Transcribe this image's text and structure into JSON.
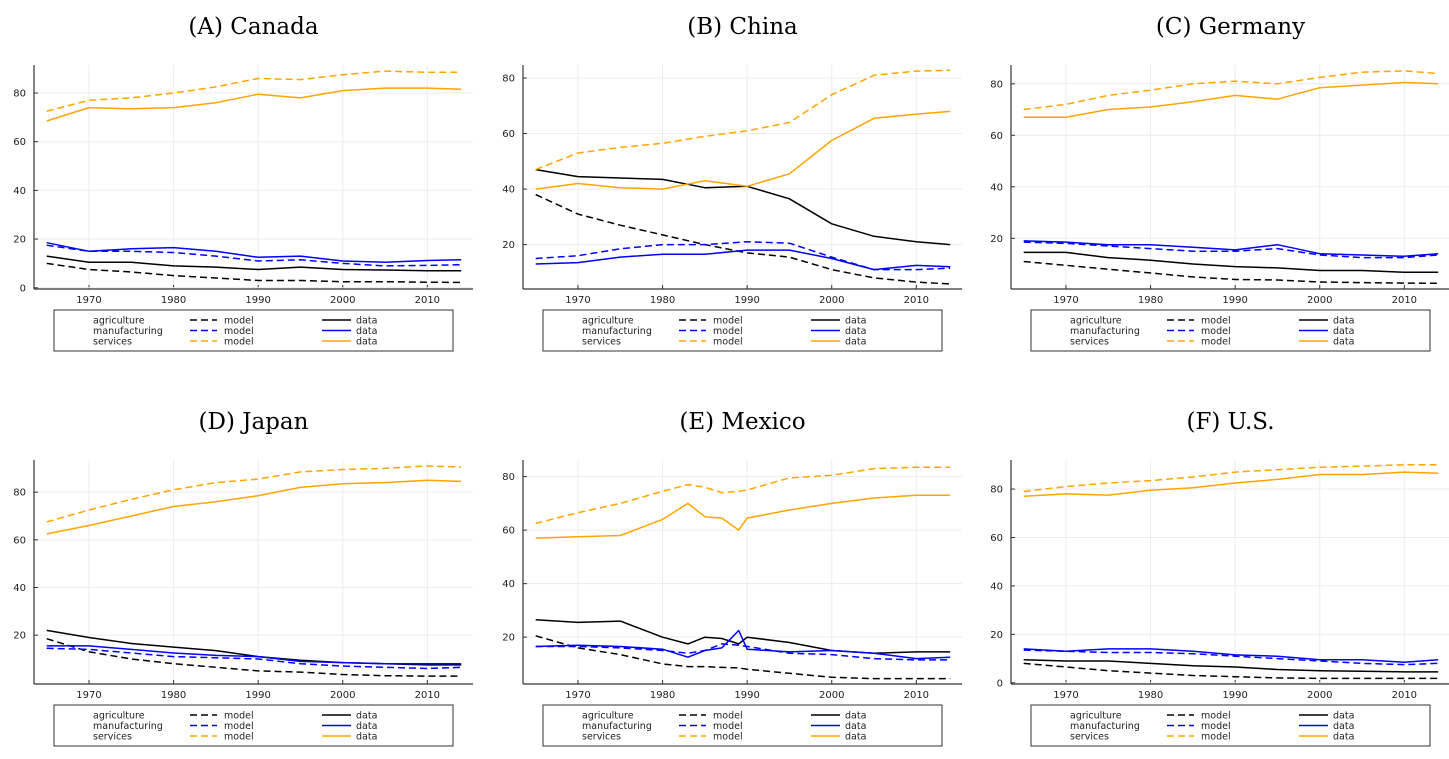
{
  "chart_data": [
    {
      "type": "line",
      "title": "(A) Canada",
      "xlim": [
        1963.5,
        2015.4
      ],
      "ylim": [
        -0.5,
        91.5
      ],
      "xticks": [
        1970,
        1980,
        1990,
        2000,
        2010
      ],
      "yticks": [
        0,
        20,
        40,
        60,
        80
      ],
      "grid": true,
      "legend_placement": "bottom",
      "x": [
        1965,
        1970,
        1975,
        1980,
        1985,
        1990,
        1995,
        2000,
        2005,
        2010,
        2014
      ],
      "series": [
        {
          "name": "agriculture model",
          "sector": "agriculture",
          "kind": "model",
          "color": "#000000",
          "values": [
            10,
            7.5,
            6.5,
            5,
            4,
            3,
            3,
            2.5,
            2.5,
            2.3,
            2.2
          ]
        },
        {
          "name": "agriculture data",
          "sector": "agriculture",
          "kind": "data",
          "color": "#000000",
          "values": [
            13,
            10.5,
            10.5,
            9,
            8.5,
            7.5,
            8.5,
            7.5,
            7.3,
            7,
            7
          ]
        },
        {
          "name": "manufacturing model",
          "sector": "manufacturing",
          "kind": "model",
          "color": "#0000ff",
          "values": [
            17.5,
            15,
            15,
            14.5,
            13,
            11,
            11.5,
            10,
            9,
            9.2,
            9.5
          ]
        },
        {
          "name": "manufacturing data",
          "sector": "manufacturing",
          "kind": "data",
          "color": "#0000ff",
          "values": [
            18.5,
            15,
            16,
            16.5,
            15,
            12.5,
            13,
            11,
            10.5,
            11.2,
            11.5
          ]
        },
        {
          "name": "services model",
          "sector": "services",
          "kind": "model",
          "color": "#ffa500",
          "values": [
            72.5,
            77,
            78,
            80,
            82.5,
            86,
            85.5,
            87.5,
            89,
            88.5,
            88.5
          ]
        },
        {
          "name": "services data",
          "sector": "services",
          "kind": "data",
          "color": "#ffa500",
          "values": [
            68.5,
            74,
            73.5,
            74,
            76,
            79.5,
            78,
            81,
            82,
            82,
            81.5
          ]
        }
      ]
    },
    {
      "type": "line",
      "title": "(B) China",
      "xlim": [
        1963.5,
        2015.4
      ],
      "ylim": [
        4,
        84.7
      ],
      "xticks": [
        1970,
        1980,
        1990,
        2000,
        2010
      ],
      "yticks": [
        20,
        40,
        60,
        80
      ],
      "grid": true,
      "legend_placement": "bottom",
      "x": [
        1965,
        1970,
        1975,
        1980,
        1985,
        1990,
        1995,
        2000,
        2005,
        2010,
        2014
      ],
      "series": [
        {
          "name": "agriculture model",
          "sector": "agriculture",
          "kind": "model",
          "color": "#000000",
          "values": [
            38,
            31,
            27,
            23.5,
            20,
            17,
            15.5,
            11,
            8,
            6.5,
            5.8
          ]
        },
        {
          "name": "agriculture data",
          "sector": "agriculture",
          "kind": "data",
          "color": "#000000",
          "values": [
            47,
            44.5,
            44,
            43.5,
            40.5,
            41,
            36.5,
            27.5,
            23,
            21,
            20
          ]
        },
        {
          "name": "manufacturing model",
          "sector": "manufacturing",
          "kind": "model",
          "color": "#0000ff",
          "values": [
            15,
            16,
            18.5,
            20,
            20,
            21,
            20.5,
            15.5,
            11,
            11,
            11.5
          ]
        },
        {
          "name": "manufacturing data",
          "sector": "manufacturing",
          "kind": "data",
          "color": "#0000ff",
          "values": [
            13,
            13.5,
            15.5,
            16.5,
            16.5,
            18,
            18,
            15,
            11,
            12.5,
            12
          ]
        },
        {
          "name": "services model",
          "sector": "services",
          "kind": "model",
          "color": "#ffa500",
          "values": [
            47,
            53,
            55,
            56.5,
            59,
            61,
            64,
            74,
            81,
            82.5,
            82.8
          ]
        },
        {
          "name": "services data",
          "sector": "services",
          "kind": "data",
          "color": "#ffa500",
          "values": [
            40,
            42,
            40.5,
            40,
            43,
            41,
            45.5,
            57.5,
            65.5,
            67,
            68
          ]
        }
      ]
    },
    {
      "type": "line",
      "title": "(C) Germany",
      "xlim": [
        1963.5,
        2015.4
      ],
      "ylim": [
        0.3,
        87.3
      ],
      "xticks": [
        1970,
        1980,
        1990,
        2000,
        2010
      ],
      "yticks": [
        20,
        40,
        60,
        80
      ],
      "grid": true,
      "legend_placement": "bottom",
      "x": [
        1965,
        1970,
        1975,
        1980,
        1985,
        1990,
        1995,
        2000,
        2005,
        2010,
        2014
      ],
      "series": [
        {
          "name": "agriculture model",
          "sector": "agriculture",
          "kind": "model",
          "color": "#000000",
          "values": [
            11,
            9.5,
            8,
            6.5,
            5,
            4,
            3.8,
            3,
            2.8,
            2.6,
            2.5
          ]
        },
        {
          "name": "agriculture data",
          "sector": "agriculture",
          "kind": "data",
          "color": "#000000",
          "values": [
            14.5,
            14.5,
            12.5,
            11.5,
            10,
            9,
            8.5,
            7.5,
            7.5,
            6.8,
            6.8
          ]
        },
        {
          "name": "manufacturing model",
          "sector": "manufacturing",
          "kind": "model",
          "color": "#0000ff",
          "values": [
            18.5,
            18,
            17,
            16,
            15,
            15,
            16,
            13.5,
            12.5,
            12.5,
            13.5
          ]
        },
        {
          "name": "manufacturing data",
          "sector": "manufacturing",
          "kind": "data",
          "color": "#0000ff",
          "values": [
            19,
            18.5,
            17.5,
            17.5,
            16.5,
            15.5,
            17.5,
            14,
            13.5,
            13,
            14
          ]
        },
        {
          "name": "services model",
          "sector": "services",
          "kind": "model",
          "color": "#ffa500",
          "values": [
            70,
            72,
            75.5,
            77.5,
            80,
            81,
            80,
            82.5,
            84.5,
            85,
            84
          ]
        },
        {
          "name": "services data",
          "sector": "services",
          "kind": "data",
          "color": "#ffa500",
          "values": [
            67,
            67,
            70,
            71,
            73,
            75.5,
            74,
            78.5,
            79.5,
            80.5,
            80
          ]
        }
      ]
    },
    {
      "type": "line",
      "title": "(D) Japan",
      "xlim": [
        1963.5,
        2015.4
      ],
      "ylim": [
        -0.5,
        93.5
      ],
      "xticks": [
        1970,
        1980,
        1990,
        2000,
        2010
      ],
      "yticks": [
        20,
        40,
        60,
        80
      ],
      "grid": true,
      "legend_placement": "bottom",
      "x": [
        1965,
        1970,
        1975,
        1980,
        1985,
        1990,
        1995,
        2000,
        2005,
        2010,
        2014
      ],
      "series": [
        {
          "name": "agriculture model",
          "sector": "agriculture",
          "kind": "model",
          "color": "#000000",
          "values": [
            18.5,
            13,
            10,
            8,
            6.5,
            5,
            4.5,
            3.5,
            3,
            2.8,
            2.8
          ]
        },
        {
          "name": "agriculture data",
          "sector": "agriculture",
          "kind": "data",
          "color": "#000000",
          "values": [
            22,
            19,
            16.5,
            15,
            13.5,
            11,
            9.5,
            8.5,
            8,
            7.5,
            7.5
          ]
        },
        {
          "name": "manufacturing model",
          "sector": "manufacturing",
          "kind": "model",
          "color": "#0000ff",
          "values": [
            14.5,
            14,
            12.5,
            11,
            10.5,
            10,
            8,
            7,
            6.5,
            6,
            6.5
          ]
        },
        {
          "name": "manufacturing data",
          "sector": "manufacturing",
          "kind": "data",
          "color": "#0000ff",
          "values": [
            15.5,
            15.5,
            14,
            12.5,
            11.5,
            11,
            9,
            8.5,
            8,
            8,
            8
          ]
        },
        {
          "name": "services model",
          "sector": "services",
          "kind": "model",
          "color": "#ffa500",
          "values": [
            67.5,
            72.5,
            77,
            81,
            84,
            85.5,
            88.5,
            89.5,
            90,
            91,
            90.5
          ]
        },
        {
          "name": "services data",
          "sector": "services",
          "kind": "data",
          "color": "#ffa500",
          "values": [
            62.5,
            66,
            70,
            74,
            76,
            78.5,
            82,
            83.5,
            84,
            85,
            84.5
          ]
        }
      ]
    },
    {
      "type": "line",
      "title": "(E) Mexico",
      "xlim": [
        1963.5,
        2015.4
      ],
      "ylim": [
        2.5,
        86.2
      ],
      "xticks": [
        1970,
        1980,
        1990,
        2000,
        2010
      ],
      "yticks": [
        20,
        40,
        60,
        80
      ],
      "grid": true,
      "legend_placement": "bottom",
      "x": [
        1965,
        1970,
        1975,
        1980,
        1983,
        1985,
        1987,
        1989,
        1990,
        1995,
        2000,
        2005,
        2010,
        2014
      ],
      "series": [
        {
          "name": "agriculture model",
          "sector": "agriculture",
          "kind": "model",
          "color": "#000000",
          "values": [
            20.5,
            16,
            13.5,
            10,
            9,
            9,
            8.7,
            8.5,
            8,
            6.5,
            5,
            4.5,
            4.5,
            4.5
          ]
        },
        {
          "name": "agriculture data",
          "sector": "agriculture",
          "kind": "data",
          "color": "#000000",
          "values": [
            26.5,
            25.5,
            26,
            20,
            17.5,
            20,
            19.5,
            17.5,
            20,
            18,
            15,
            14,
            14.5,
            14.5
          ]
        },
        {
          "name": "manufacturing model",
          "sector": "manufacturing",
          "kind": "model",
          "color": "#0000ff",
          "values": [
            16.5,
            16.5,
            16,
            15,
            14,
            15,
            17.5,
            17,
            16.5,
            14,
            13.5,
            12,
            11.5,
            11.5
          ]
        },
        {
          "name": "manufacturing data",
          "sector": "manufacturing",
          "kind": "data",
          "color": "#0000ff",
          "values": [
            16.5,
            17,
            16.5,
            15.5,
            12.5,
            15,
            16,
            22.5,
            15.5,
            14.5,
            15,
            14,
            12,
            12.5
          ]
        },
        {
          "name": "services model",
          "sector": "services",
          "kind": "model",
          "color": "#ffa500",
          "values": [
            62.5,
            66.5,
            70,
            74.5,
            77,
            76,
            74,
            74.5,
            75,
            79.5,
            80.5,
            83,
            83.5,
            83.5
          ]
        },
        {
          "name": "services data",
          "sector": "services",
          "kind": "data",
          "color": "#ffa500",
          "values": [
            57,
            57.5,
            58,
            64,
            70,
            65,
            64.5,
            60,
            64.5,
            67.5,
            70,
            72,
            73,
            73
          ]
        }
      ]
    },
    {
      "type": "line",
      "title": "(F) U.S.",
      "xlim": [
        1963.5,
        2015.4
      ],
      "ylim": [
        -0.5,
        92
      ],
      "xticks": [
        1970,
        1980,
        1990,
        2000,
        2010
      ],
      "yticks": [
        0,
        20,
        40,
        60,
        80
      ],
      "grid": true,
      "legend_placement": "bottom",
      "x": [
        1965,
        1970,
        1975,
        1980,
        1985,
        1990,
        1995,
        2000,
        2005,
        2010,
        2014
      ],
      "series": [
        {
          "name": "agriculture model",
          "sector": "agriculture",
          "kind": "model",
          "color": "#000000",
          "values": [
            8,
            6.5,
            5,
            4,
            3,
            2.5,
            2,
            1.8,
            1.8,
            1.8,
            1.8
          ]
        },
        {
          "name": "agriculture data",
          "sector": "agriculture",
          "kind": "data",
          "color": "#000000",
          "values": [
            9.5,
            9,
            9,
            8,
            7,
            6.5,
            5.5,
            5,
            4.8,
            4.5,
            4.5
          ]
        },
        {
          "name": "manufacturing model",
          "sector": "manufacturing",
          "kind": "model",
          "color": "#0000ff",
          "values": [
            13.5,
            13,
            12.5,
            12.5,
            12,
            11,
            10,
            9,
            8,
            7.5,
            8
          ]
        },
        {
          "name": "manufacturing data",
          "sector": "manufacturing",
          "kind": "data",
          "color": "#0000ff",
          "values": [
            14,
            13,
            14,
            14,
            13,
            11.5,
            11,
            9.5,
            9.5,
            8.5,
            9.5
          ]
        },
        {
          "name": "services model",
          "sector": "services",
          "kind": "model",
          "color": "#ffa500",
          "values": [
            79,
            81,
            82.5,
            83.5,
            85,
            87,
            88,
            89,
            89.5,
            90,
            90
          ]
        },
        {
          "name": "services data",
          "sector": "services",
          "kind": "data",
          "color": "#ffa500",
          "values": [
            77,
            78,
            77.5,
            79.5,
            80.5,
            82.5,
            84,
            86,
            86,
            87,
            86.5
          ]
        }
      ]
    }
  ],
  "legend": {
    "sectors": [
      "agriculture",
      "manufacturing",
      "services"
    ],
    "model_label": "model",
    "data_label": "data"
  }
}
